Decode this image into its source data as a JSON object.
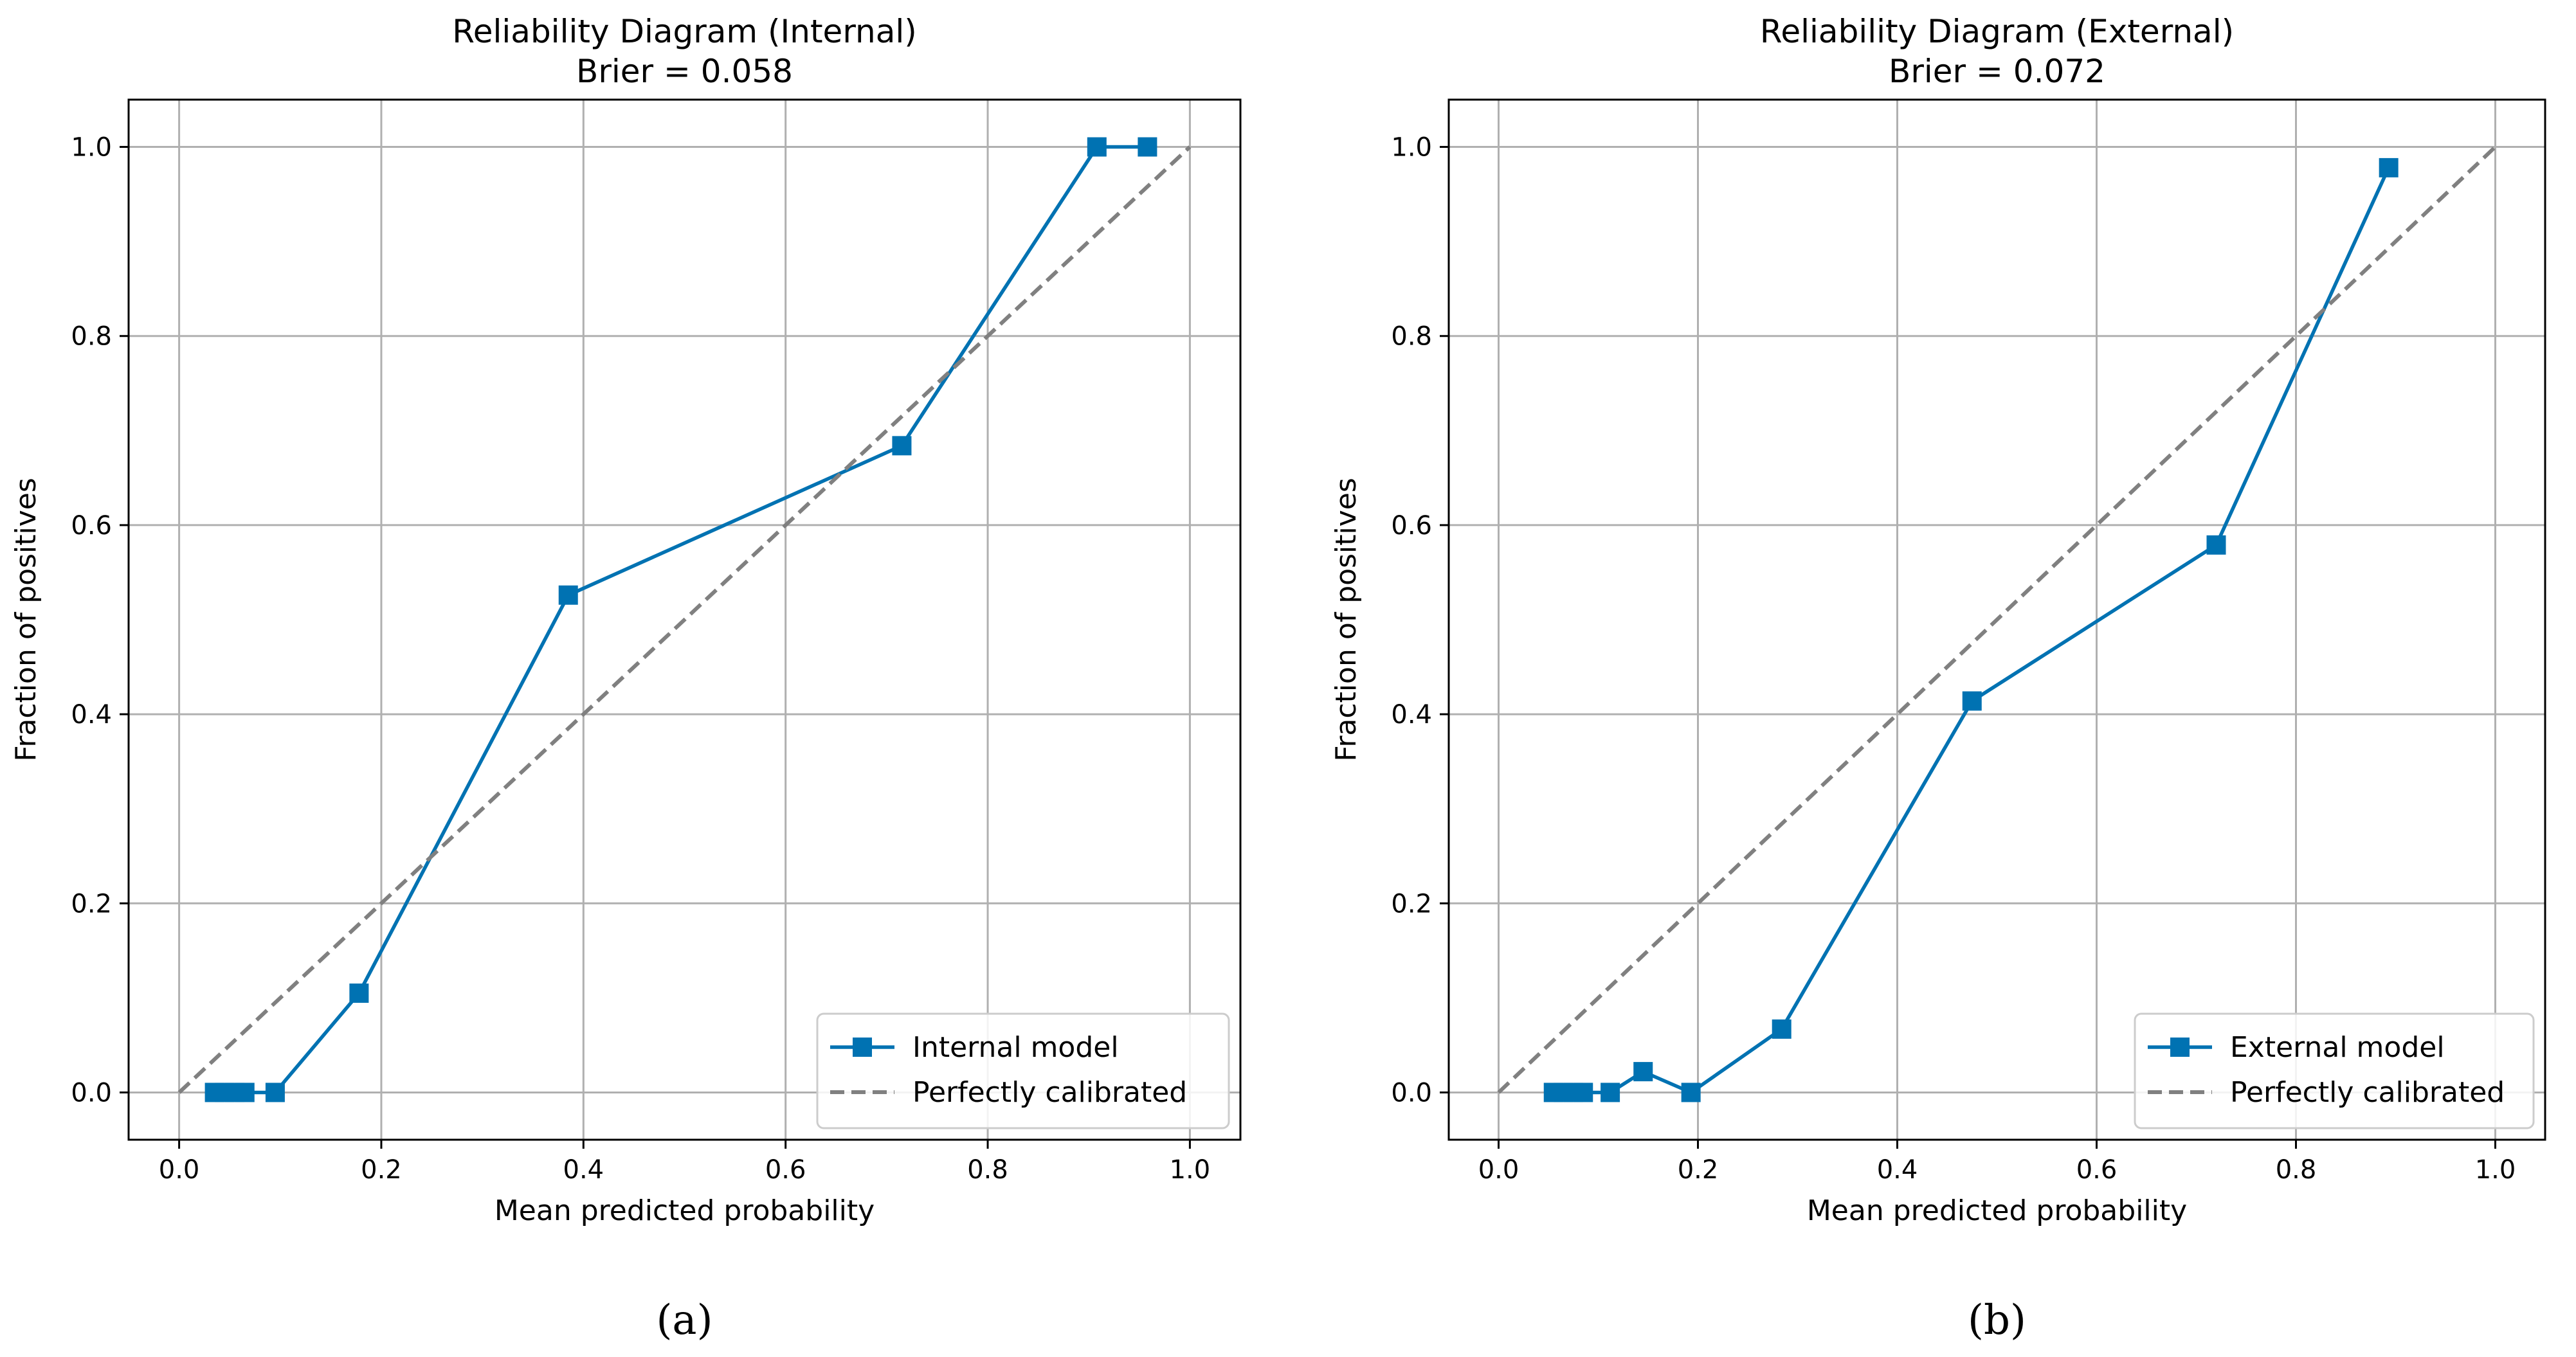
{
  "chart_data": [
    {
      "type": "line",
      "panel_label": "(a)",
      "title": "Reliability Diagram (Internal)",
      "subtitle": "Brier = 0.058",
      "xlabel": "Mean predicted probability",
      "ylabel": "Fraction of positives",
      "xlim": [
        -0.05,
        1.05
      ],
      "ylim": [
        -0.05,
        1.05
      ],
      "xticks": [
        "0.0",
        "0.2",
        "0.4",
        "0.6",
        "0.8",
        "1.0"
      ],
      "yticks": [
        "0.0",
        "0.2",
        "0.4",
        "0.6",
        "0.8",
        "1.0"
      ],
      "grid": true,
      "legend_position": "bottom-right",
      "series": [
        {
          "name": "Internal model",
          "color": "#0072B2",
          "marker": "square",
          "line_style": "solid",
          "x": [
            0.035,
            0.045,
            0.055,
            0.065,
            0.095,
            0.178,
            0.385,
            0.715,
            0.908,
            0.958
          ],
          "y": [
            0.0,
            0.0,
            0.0,
            0.0,
            0.0,
            0.105,
            0.526,
            0.684,
            1.0,
            1.0
          ]
        },
        {
          "name": "Perfectly calibrated",
          "color": "#808080",
          "marker": "none",
          "line_style": "dashed",
          "x": [
            0.0,
            1.0
          ],
          "y": [
            0.0,
            1.0
          ]
        }
      ]
    },
    {
      "type": "line",
      "panel_label": "(b)",
      "title": "Reliability Diagram (External)",
      "subtitle": "Brier = 0.072",
      "xlabel": "Mean predicted probability",
      "ylabel": "Fraction of positives",
      "xlim": [
        -0.05,
        1.05
      ],
      "ylim": [
        -0.05,
        1.05
      ],
      "xticks": [
        "0.0",
        "0.2",
        "0.4",
        "0.6",
        "0.8",
        "1.0"
      ],
      "yticks": [
        "0.0",
        "0.2",
        "0.4",
        "0.6",
        "0.8",
        "1.0"
      ],
      "grid": true,
      "legend_position": "bottom-right",
      "series": [
        {
          "name": "External model",
          "color": "#0072B2",
          "marker": "square",
          "line_style": "solid",
          "x": [
            0.055,
            0.065,
            0.075,
            0.085,
            0.112,
            0.145,
            0.193,
            0.284,
            0.475,
            0.72,
            0.893
          ],
          "y": [
            0.0,
            0.0,
            0.0,
            0.0,
            0.0,
            0.022,
            0.0,
            0.067,
            0.414,
            0.579,
            0.978
          ]
        },
        {
          "name": "Perfectly calibrated",
          "color": "#808080",
          "marker": "none",
          "line_style": "dashed",
          "x": [
            0.0,
            1.0
          ],
          "y": [
            0.0,
            1.0
          ]
        }
      ]
    }
  ]
}
